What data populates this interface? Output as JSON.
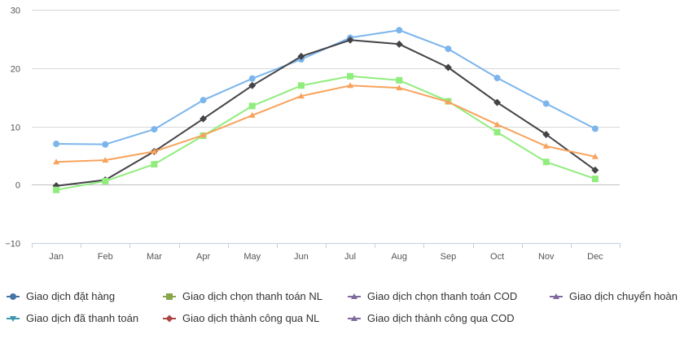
{
  "chart_data": {
    "type": "line",
    "title": "",
    "xlabel": "",
    "ylabel": "",
    "categories": [
      "Jan",
      "Feb",
      "Mar",
      "Apr",
      "May",
      "Jun",
      "Jul",
      "Aug",
      "Sep",
      "Oct",
      "Nov",
      "Dec"
    ],
    "ylim": [
      -10,
      30
    ],
    "yticks": [
      "−10",
      "0",
      "10",
      "20",
      "30"
    ],
    "grid": true,
    "legend_position": "bottom",
    "series": [
      {
        "name": "Giao dịch đặt hàng",
        "color": "#7cb5ec",
        "marker": "circle",
        "values": [
          7.0,
          6.9,
          9.5,
          14.5,
          18.2,
          21.5,
          25.2,
          26.5,
          23.3,
          18.3,
          13.9,
          9.6
        ]
      },
      {
        "name": "Giao dịch đã thanh toán",
        "color": "#434348",
        "marker": "diamond",
        "values": [
          -0.2,
          0.8,
          5.7,
          11.3,
          17.0,
          22.0,
          24.8,
          24.1,
          20.1,
          14.1,
          8.6,
          2.5
        ]
      },
      {
        "name": "Giao dịch chọn thanh toán NL",
        "color": "#90ed7d",
        "marker": "square",
        "values": [
          -0.9,
          0.6,
          3.5,
          8.4,
          13.5,
          17.0,
          18.6,
          17.9,
          14.3,
          9.0,
          3.9,
          1.0
        ]
      },
      {
        "name": "Giao dịch thành công qua NL",
        "color": "#f7a35c",
        "marker": "triangle",
        "values": [
          3.9,
          4.2,
          5.7,
          8.5,
          11.9,
          15.2,
          17.0,
          16.6,
          14.2,
          10.3,
          6.6,
          4.8
        ]
      }
    ],
    "legend_items": [
      {
        "name": "Giao dịch đặt hàng",
        "color": "#4572a7",
        "marker": "circle"
      },
      {
        "name": "Giao dịch chọn thanh toán NL",
        "color": "#89a54e",
        "marker": "square"
      },
      {
        "name": "Giao dịch chọn thanh toán COD",
        "color": "#80699b",
        "marker": "triangle"
      },
      {
        "name": "Giao dịch chuyển hoàn",
        "color": "#80699b",
        "marker": "triangle"
      },
      {
        "name": "Giao dịch đã thanh toán",
        "color": "#3d96ae",
        "marker": "triangle-down"
      },
      {
        "name": "Giao dịch thành công qua NL",
        "color": "#aa4643",
        "marker": "diamond"
      },
      {
        "name": "Giao dịch thành công qua COD",
        "color": "#80699b",
        "marker": "triangle"
      }
    ]
  }
}
